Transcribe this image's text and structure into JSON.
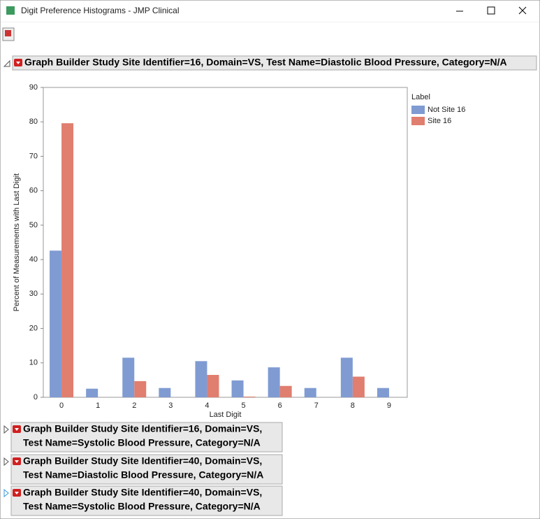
{
  "window": {
    "title": "Digit Preference Histograms - JMP Clinical"
  },
  "outlines": [
    {
      "lines": [
        "Graph Builder Study Site Identifier=16, Domain=VS, Test Name=Diastolic Blood Pressure, Category=N/A"
      ]
    },
    {
      "lines": [
        "Graph Builder Study Site Identifier=16, Domain=VS,",
        "Test Name=Systolic Blood Pressure, Category=N/A"
      ]
    },
    {
      "lines": [
        "Graph Builder Study Site Identifier=40, Domain=VS,",
        "Test Name=Diastolic Blood Pressure, Category=N/A"
      ]
    },
    {
      "lines": [
        "Graph Builder Study Site Identifier=40, Domain=VS,",
        "Test Name=Systolic Blood Pressure, Category=N/A"
      ]
    }
  ],
  "chart_data": {
    "type": "bar",
    "x_label": "Last Digit",
    "y_label": "Percent of Measurements with Last Digit",
    "legend_title": "Label",
    "categories": [
      "0",
      "1",
      "2",
      "3",
      "4",
      "5",
      "6",
      "7",
      "8",
      "9"
    ],
    "series": [
      {
        "name": "Not Site 16",
        "color": "#7f9bd2",
        "values": [
          42.6,
          2.5,
          11.5,
          2.7,
          10.5,
          4.9,
          8.7,
          2.7,
          11.5,
          2.7
        ]
      },
      {
        "name": "Site 16",
        "color": "#e07e6f",
        "values": [
          79.6,
          0,
          4.7,
          0,
          6.5,
          0.2,
          3.3,
          0,
          6,
          0
        ]
      }
    ],
    "ylim": [
      0,
      90
    ],
    "yticks": [
      0,
      10,
      20,
      30,
      40,
      50,
      60,
      70,
      80,
      90
    ],
    "grid": false
  }
}
